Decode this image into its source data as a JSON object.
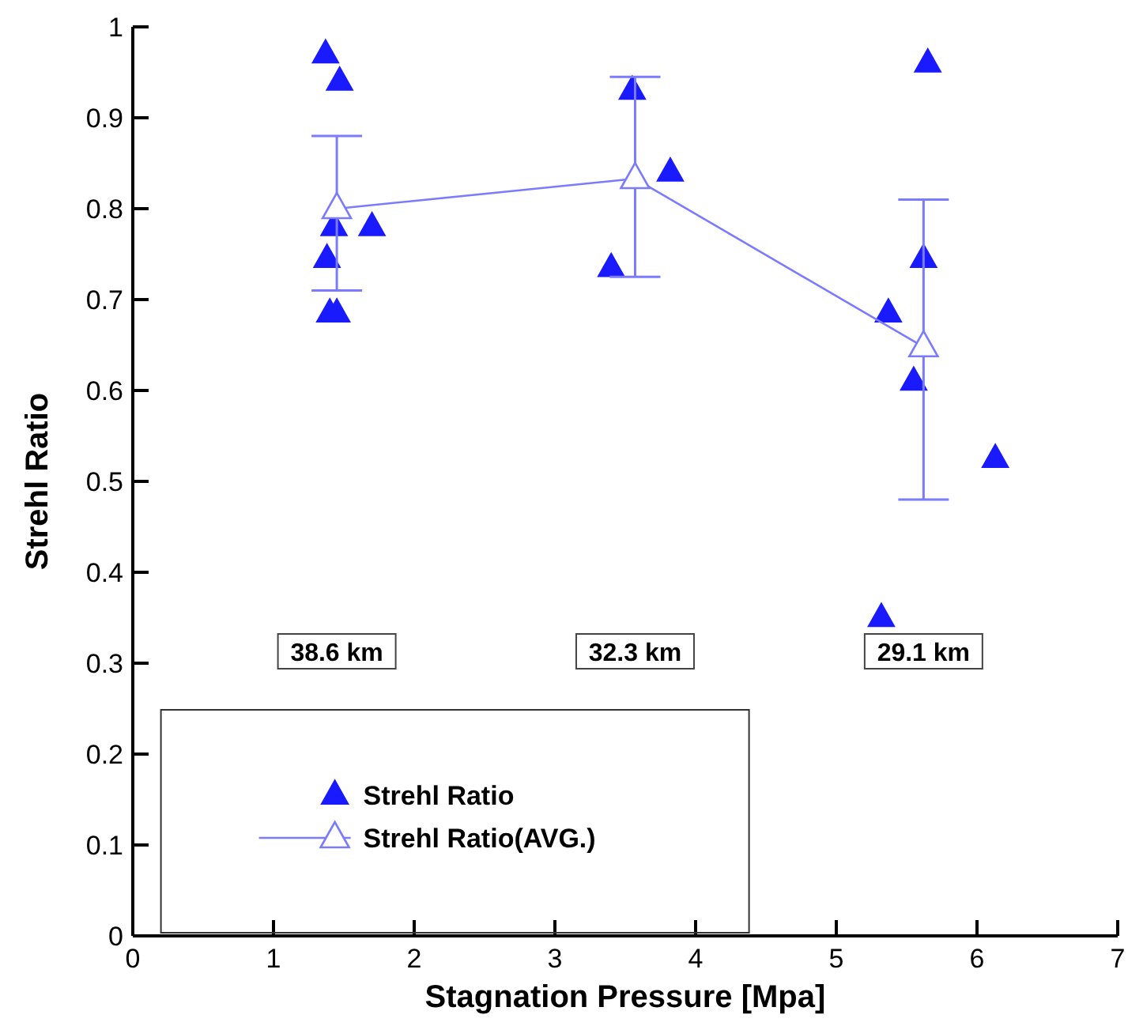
{
  "chart_data": {
    "type": "scatter",
    "xlabel": "Stagnation Pressure [Mpa]",
    "ylabel": "Strehl Ratio",
    "xlim": [
      0,
      7
    ],
    "xticks": [
      0,
      1,
      2,
      3,
      4,
      5,
      6,
      7
    ],
    "ylim": [
      0,
      1
    ],
    "yticks": [
      0,
      0.1,
      0.2,
      0.3,
      0.4,
      0.5,
      0.6,
      0.7,
      0.8,
      0.9,
      1
    ],
    "grid": false,
    "legend": "bottom left",
    "series": [
      {
        "name": "Strehl Ratio",
        "color": "#1a1aff",
        "marker": "triangle",
        "x": [
          1.37,
          1.47,
          1.38,
          1.43,
          1.4,
          1.45,
          1.7,
          3.4,
          3.55,
          3.82,
          5.32,
          5.37,
          5.55,
          5.62,
          5.65,
          6.13
        ],
        "values": [
          0.97,
          0.94,
          0.745,
          0.78,
          0.685,
          0.685,
          0.78,
          0.735,
          0.93,
          0.84,
          0.35,
          0.685,
          0.61,
          0.745,
          0.96,
          0.525
        ]
      },
      {
        "name": "Strehl Ratio(AVG.)",
        "type": "line",
        "color": "#7b7bff",
        "marker": "triangle",
        "line_style": "solid",
        "x": [
          1.45,
          3.57,
          5.62
        ],
        "values": [
          0.8,
          0.833,
          0.648
        ],
        "errors": [
          [
            0.71,
            0.88
          ],
          [
            0.725,
            0.945
          ],
          [
            0.48,
            0.81
          ]
        ]
      }
    ],
    "annotations": [
      "38.6 km",
      "32.3 km",
      "29.1 km"
    ]
  }
}
